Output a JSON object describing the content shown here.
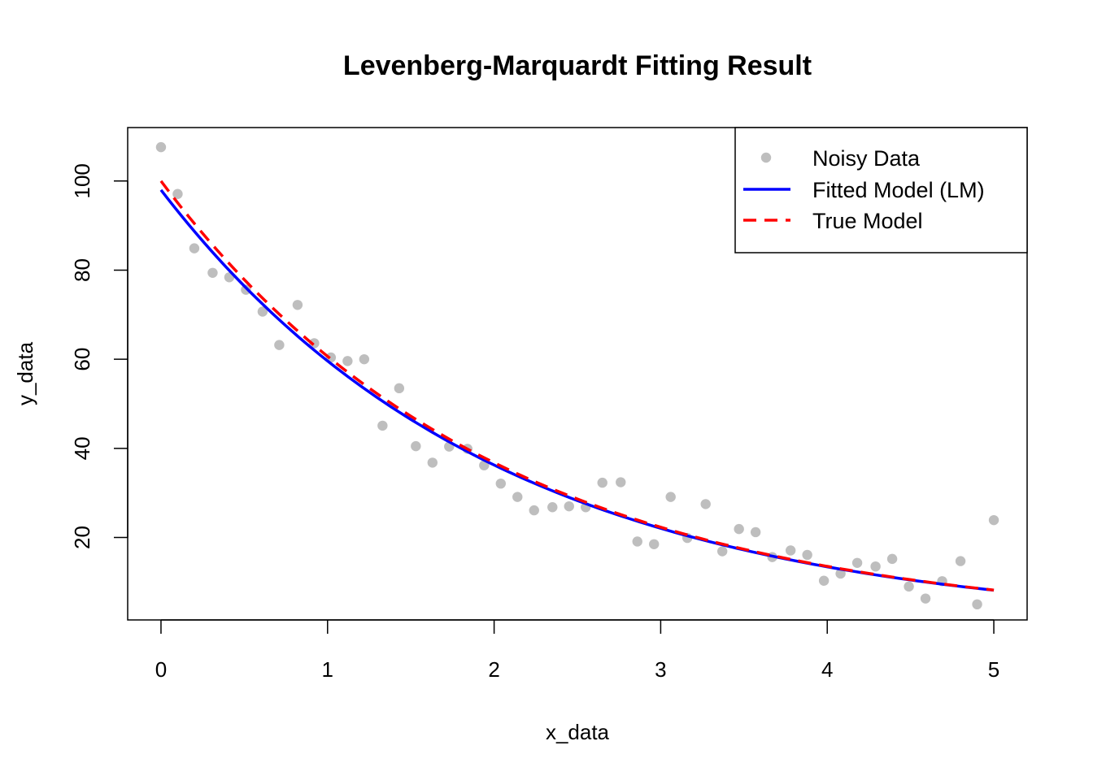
{
  "chart_data": {
    "type": "scatter",
    "title": "Levenberg-Marquardt Fitting Result",
    "xlabel": "x_data",
    "ylabel": "y_data",
    "xlim": [
      -0.2,
      5.2
    ],
    "ylim": [
      1.5,
      112
    ],
    "xticks": [
      0,
      1,
      2,
      3,
      4,
      5
    ],
    "yticks": [
      20,
      40,
      60,
      80,
      100
    ],
    "grid": false,
    "legend_position": "top-right",
    "series": [
      {
        "name": "Noisy Data",
        "kind": "points",
        "color": "#bebebe",
        "x": [
          0,
          0.1,
          0.2,
          0.31,
          0.41,
          0.51,
          0.61,
          0.71,
          0.82,
          0.92,
          1.02,
          1.12,
          1.22,
          1.33,
          1.43,
          1.53,
          1.63,
          1.73,
          1.84,
          1.94,
          2.04,
          2.14,
          2.24,
          2.35,
          2.45,
          2.55,
          2.65,
          2.76,
          2.86,
          2.96,
          3.06,
          3.16,
          3.27,
          3.37,
          3.47,
          3.57,
          3.67,
          3.78,
          3.88,
          3.98,
          4.08,
          4.18,
          4.29,
          4.39,
          4.49,
          4.59,
          4.69,
          4.8,
          4.9,
          5.0
        ],
        "y": [
          107.6,
          97.1,
          84.9,
          79.4,
          78.4,
          75.6,
          70.7,
          63.2,
          72.2,
          63.6,
          60.4,
          59.6,
          60.0,
          45.1,
          53.5,
          40.5,
          36.8,
          40.4,
          39.9,
          36.2,
          32.1,
          29.1,
          26.1,
          26.8,
          27.0,
          26.8,
          32.3,
          32.4,
          19.1,
          18.5,
          29.1,
          19.9,
          27.5,
          16.9,
          21.9,
          21.2,
          15.6,
          17.1,
          16.1,
          10.3,
          11.9,
          14.3,
          13.5,
          15.2,
          9.0,
          6.3,
          10.2,
          14.7,
          5.0,
          23.9
        ]
      },
      {
        "name": "Fitted Model (LM)",
        "kind": "line",
        "color": "#0000ff",
        "dash": "solid",
        "a": 98.0,
        "b": 0.497
      },
      {
        "name": "True Model",
        "kind": "line",
        "color": "#ff0000",
        "dash": "dashed",
        "a": 100.0,
        "b": 0.5
      }
    ]
  }
}
